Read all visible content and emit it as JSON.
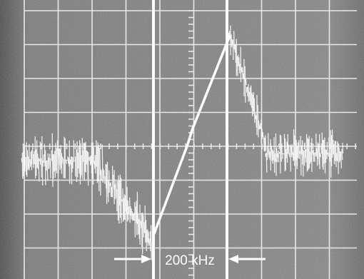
{
  "annotation": "200 kHz"
}
